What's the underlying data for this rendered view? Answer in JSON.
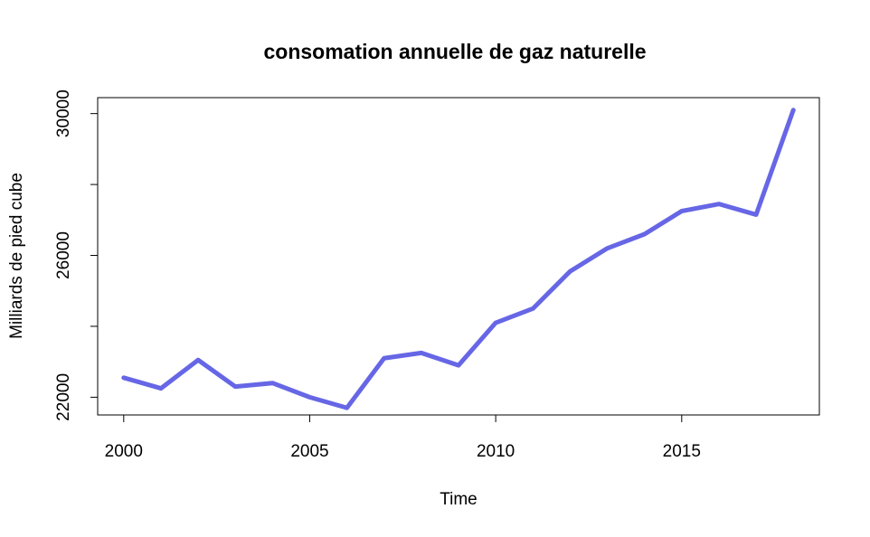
{
  "chart_data": {
    "type": "line",
    "title": "consomation annuelle de gaz naturelle",
    "xlabel": "Time",
    "ylabel": "Milliards de pied cube",
    "x": [
      2000,
      2001,
      2002,
      2003,
      2004,
      2005,
      2006,
      2007,
      2008,
      2009,
      2010,
      2011,
      2012,
      2013,
      2014,
      2015,
      2016,
      2017,
      2018
    ],
    "series": [
      {
        "values": [
          22550,
          22250,
          23050,
          22300,
          22400,
          22000,
          21700,
          23100,
          23250,
          22900,
          24100,
          24500,
          25550,
          26200,
          26600,
          27250,
          27450,
          27150,
          30100
        ],
        "color": "#6666e6"
      }
    ],
    "xticks": [
      "2000",
      "2005",
      "2010",
      "2015"
    ],
    "yticks": [
      "22000",
      "26000",
      "30000"
    ],
    "ylim": [
      21500,
      30450
    ],
    "xlim": [
      1999.3,
      2018.7
    ],
    "grid": false,
    "legend": "none"
  }
}
